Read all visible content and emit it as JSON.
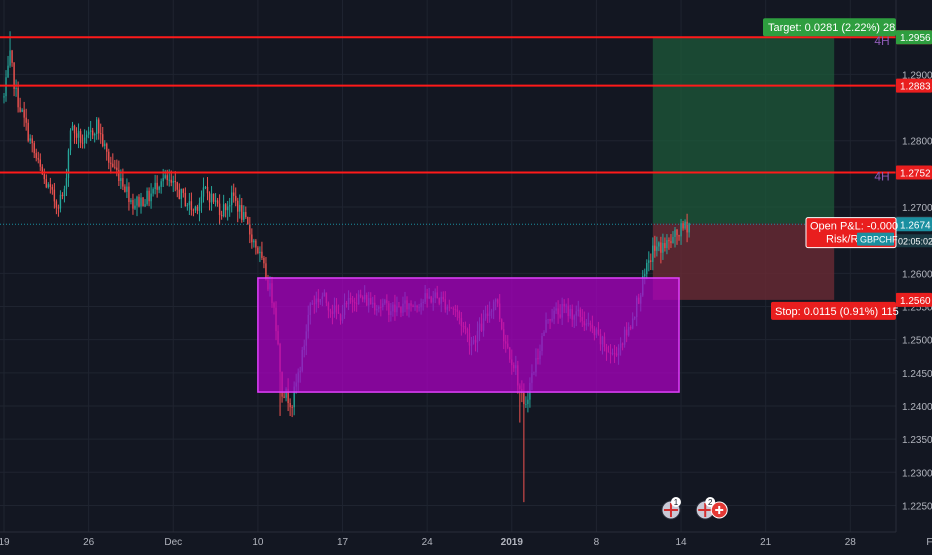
{
  "chart_data": {
    "type": "candlestick",
    "symbol": "GBPCHF",
    "timeframe_badge": "4H",
    "colors": {
      "background": "#131722",
      "grid": "#1f2430",
      "up": "#26a69a",
      "down": "#ef5350",
      "level_line": "#ff1a1a",
      "range_box": "#b000c8",
      "target_zone": "#1e5a3a",
      "stop_zone": "#6a2a34",
      "axis_text": "#b2b5be",
      "label_red": "#e91e1e",
      "label_green": "#2e9e3f",
      "badge_teal": "#1a8fa0",
      "current_price_label": "#3a3e4a"
    },
    "y_axis": {
      "ticks": [
        1.29,
        1.28,
        1.27,
        1.26,
        1.255,
        1.25,
        1.245,
        1.24,
        1.235,
        1.23,
        1.225
      ],
      "tick_labels": [
        "1.2900",
        "1.2800",
        "1.2700",
        "1.2600",
        "1.2550",
        "1.2500",
        "1.2450",
        "1.2400",
        "1.2350",
        "1.2300",
        "1.2250"
      ],
      "range": [
        1.221,
        1.2985
      ]
    },
    "x_axis": {
      "tick_labels": [
        "19",
        "26",
        "Dec",
        "10",
        "17",
        "24",
        "2019",
        "8",
        "14",
        "21",
        "28",
        "Feb"
      ],
      "tick_bars": [
        0,
        42,
        84,
        126,
        168,
        210,
        252,
        294,
        336,
        378,
        420,
        462
      ],
      "bold": [
        "2019"
      ]
    },
    "candles": {
      "anchors": [
        [
          0,
          1.2865
        ],
        [
          3,
          1.2925
        ],
        [
          6,
          1.287
        ],
        [
          10,
          1.283
        ],
        [
          15,
          1.278
        ],
        [
          20,
          1.274
        ],
        [
          26,
          1.2705
        ],
        [
          30,
          1.272
        ],
        [
          33,
          1.282
        ],
        [
          40,
          1.2795
        ],
        [
          46,
          1.2825
        ],
        [
          52,
          1.277
        ],
        [
          58,
          1.2745
        ],
        [
          64,
          1.2705
        ],
        [
          72,
          1.2715
        ],
        [
          78,
          1.2745
        ],
        [
          86,
          1.2725
        ],
        [
          94,
          1.2695
        ],
        [
          100,
          1.2725
        ],
        [
          108,
          1.2695
        ],
        [
          114,
          1.2715
        ],
        [
          120,
          1.2675
        ],
        [
          126,
          1.2635
        ],
        [
          130,
          1.2595
        ],
        [
          134,
          1.2555
        ],
        [
          138,
          1.2425
        ],
        [
          143,
          1.2405
        ],
        [
          148,
          1.2475
        ],
        [
          152,
          1.2555
        ],
        [
          158,
          1.2565
        ],
        [
          166,
          1.2535
        ],
        [
          174,
          1.2565
        ],
        [
          184,
          1.2555
        ],
        [
          194,
          1.2545
        ],
        [
          204,
          1.2555
        ],
        [
          214,
          1.2565
        ],
        [
          224,
          1.2545
        ],
        [
          232,
          1.2495
        ],
        [
          238,
          1.2525
        ],
        [
          244,
          1.2565
        ],
        [
          248,
          1.2505
        ],
        [
          254,
          1.2455
        ],
        [
          258,
          1.2395
        ],
        [
          262,
          1.2445
        ],
        [
          270,
          1.2535
        ],
        [
          278,
          1.2545
        ],
        [
          286,
          1.2535
        ],
        [
          294,
          1.2505
        ],
        [
          302,
          1.2475
        ],
        [
          310,
          1.2515
        ],
        [
          314,
          1.2555
        ],
        [
          318,
          1.2595
        ],
        [
          322,
          1.2635
        ],
        [
          330,
          1.2645
        ],
        [
          336,
          1.2665
        ],
        [
          340,
          1.2675
        ]
      ],
      "spikes": [
        [
          258,
          1.2255
        ],
        [
          256,
          1.2375
        ],
        [
          137,
          1.2385
        ],
        [
          3,
          1.2965
        ],
        [
          326,
          1.2615
        ]
      ],
      "count": 341
    },
    "levels": [
      {
        "name": "resistance-1",
        "price": 1.2956,
        "label": "1.2956"
      },
      {
        "name": "resistance-2",
        "price": 1.2883,
        "label": "1.2883"
      },
      {
        "name": "resistance-3",
        "price": 1.2752,
        "label": "1.2752"
      }
    ],
    "range_box": {
      "x_start_bar": 126,
      "x_end_bar": 335,
      "top": 1.2593,
      "bottom": 1.2421
    },
    "position": {
      "start_bar": 322,
      "end_bar": 412,
      "entry": 1.2675,
      "target": 1.2956,
      "stop": 1.256,
      "target_text": "Target: 0.0281 (2.22%) 28",
      "stop_text": "Stop: 0.0115 (0.91%) 115",
      "pnl_text": "Open P&L: -0.000",
      "rr_text": "Risk/R",
      "target_price_label": "1.2956",
      "stop_price_label": "1.2560",
      "entry_price_label": "1.2675"
    },
    "current_price": {
      "price": 1.2674,
      "label": "1.2674",
      "countdown": "02:05:02"
    },
    "timeframe_labels": [
      {
        "text": "4H",
        "price": 1.295
      },
      {
        "text": "4H",
        "price": 1.2746
      }
    ],
    "event_markers": [
      {
        "bar": 331,
        "count": "1"
      },
      {
        "bar": 348,
        "count": "2"
      }
    ]
  }
}
